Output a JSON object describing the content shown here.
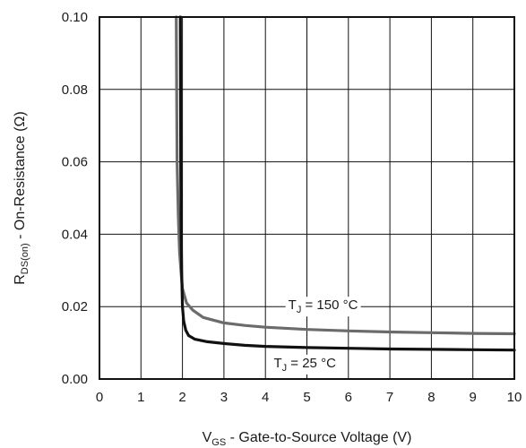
{
  "chart_data": {
    "type": "line",
    "title": "",
    "xlabel": {
      "main": "V",
      "sub": "GS",
      "rest": " - Gate-to-Source Voltage (V)"
    },
    "ylabel": {
      "main": "R",
      "sub": "DS(on)",
      "rest": " - On-Resistance (Ω)"
    },
    "xlim": [
      0,
      10
    ],
    "ylim": [
      0,
      0.1
    ],
    "x_ticks": [
      "0",
      "1",
      "2",
      "3",
      "4",
      "5",
      "6",
      "7",
      "8",
      "9",
      "10"
    ],
    "y_ticks": [
      "0.00",
      "0.02",
      "0.04",
      "0.06",
      "0.08",
      "0.10"
    ],
    "grid": true,
    "series": [
      {
        "name": "TJ = 150 °C",
        "label": {
          "main": "T",
          "sub": "J",
          "rest": " = 150 °C"
        },
        "color": "#6b6b6b",
        "x": [
          1.85,
          1.87,
          1.9,
          1.93,
          1.97,
          2.0,
          2.1,
          2.25,
          2.5,
          3.0,
          3.5,
          4.0,
          5.0,
          6.0,
          7.0,
          8.0,
          9.0,
          10.0
        ],
        "y": [
          0.1,
          0.06,
          0.045,
          0.035,
          0.029,
          0.025,
          0.021,
          0.019,
          0.017,
          0.0155,
          0.0148,
          0.0143,
          0.0137,
          0.0133,
          0.013,
          0.0128,
          0.0126,
          0.0125
        ]
      },
      {
        "name": "TJ = 25 °C",
        "label": {
          "main": "T",
          "sub": "J",
          "rest": " = 25 °C"
        },
        "color": "#111111",
        "x": [
          1.95,
          1.96,
          1.97,
          1.98,
          2.0,
          2.03,
          2.08,
          2.15,
          2.3,
          2.6,
          3.0,
          3.5,
          4.0,
          5.0,
          6.0,
          7.0,
          8.0,
          9.0,
          10.0
        ],
        "y": [
          0.1,
          0.06,
          0.04,
          0.03,
          0.02,
          0.016,
          0.0135,
          0.012,
          0.011,
          0.0103,
          0.0098,
          0.0093,
          0.009,
          0.0087,
          0.0085,
          0.0083,
          0.0082,
          0.0081,
          0.008
        ]
      }
    ]
  }
}
